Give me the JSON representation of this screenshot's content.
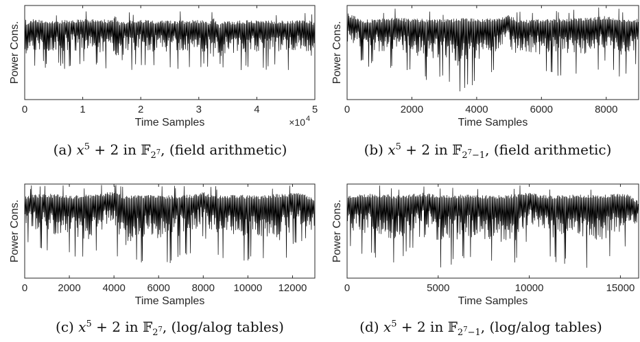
{
  "chart_data": [
    {
      "type": "line",
      "id": "a",
      "ylabel": "Power Cons.",
      "xlabel": "Time Samples",
      "xlim": [
        0,
        50000
      ],
      "x_ticks": [
        0,
        10000,
        20000,
        30000,
        40000,
        50000
      ],
      "x_tick_labels": [
        "0",
        "1",
        "2",
        "3",
        "4",
        "5"
      ],
      "x_multiplier_label": "×10",
      "x_multiplier_exp": "4",
      "y_ticks": [],
      "grid": false,
      "series": [
        {
          "x": [
            0,
            300,
            1500,
            5000,
            10000,
            15200,
            15500,
            16000,
            16600,
            17000,
            20000,
            25000,
            30000,
            32000,
            32500,
            33000,
            33600,
            34000,
            40000,
            45000,
            49000,
            49500,
            50000
          ],
          "upper": [
            0.97,
            0.8,
            0.86,
            0.84,
            0.86,
            0.85,
            0.9,
            0.85,
            0.82,
            0.84,
            0.85,
            0.84,
            0.85,
            0.83,
            0.88,
            0.84,
            0.8,
            0.83,
            0.85,
            0.84,
            0.85,
            0.82,
            0.85
          ],
          "lower": [
            0.2,
            0.25,
            0.34,
            0.32,
            0.33,
            0.3,
            0.02,
            0.25,
            0.05,
            0.3,
            0.33,
            0.32,
            0.33,
            0.31,
            0.12,
            0.3,
            0.1,
            0.3,
            0.32,
            0.31,
            0.33,
            0.1,
            0.28
          ]
        }
      ],
      "caption_letter": "(a)",
      "caption_poly": "x",
      "caption_poly_exp": "5",
      "caption_poly_rest": "+ 2 in",
      "caption_field": "𝔽",
      "caption_field_sub": "2",
      "caption_field_sub_exp": "7",
      "caption_field_sub_rest": "",
      "caption_method": ", (field arithmetic)"
    },
    {
      "type": "line",
      "id": "b",
      "ylabel": "Power Cons.",
      "xlabel": "Time Samples",
      "xlim": [
        0,
        9000
      ],
      "x_ticks": [
        0,
        2000,
        4000,
        6000,
        8000
      ],
      "x_tick_labels": [
        "0",
        "2000",
        "4000",
        "6000",
        "8000"
      ],
      "y_ticks": [],
      "grid": false,
      "series": [
        {
          "x": [
            0,
            500,
            1500,
            2500,
            3000,
            3500,
            4500,
            5000,
            5200,
            5600,
            6500,
            7500,
            8000,
            8500,
            9000
          ],
          "upper": [
            0.92,
            0.85,
            0.87,
            0.86,
            0.85,
            0.87,
            0.86,
            0.9,
            0.86,
            0.85,
            0.86,
            0.87,
            0.89,
            0.86,
            0.86
          ],
          "lower": [
            0.45,
            0.35,
            0.3,
            0.2,
            0.25,
            0.05,
            0.3,
            0.4,
            0.22,
            0.3,
            0.25,
            0.28,
            0.35,
            0.2,
            0.4
          ]
        }
      ],
      "caption_letter": "(b)",
      "caption_poly": "x",
      "caption_poly_exp": "5",
      "caption_poly_rest": "+ 2 in",
      "caption_field": "𝔽",
      "caption_field_sub": "2",
      "caption_field_sub_exp": "7",
      "caption_field_sub_rest": "−1",
      "caption_method": ", (field arithmetic)"
    },
    {
      "type": "line",
      "id": "c",
      "ylabel": "Power Cons.",
      "xlabel": "Time Samples",
      "xlim": [
        0,
        13000
      ],
      "x_ticks": [
        0,
        2000,
        4000,
        6000,
        8000,
        10000,
        12000
      ],
      "x_tick_labels": [
        "0",
        "2000",
        "4000",
        "6000",
        "8000",
        "10000",
        "12000"
      ],
      "y_ticks": [],
      "grid": false,
      "series": [
        {
          "x": [
            0,
            1000,
            2000,
            3000,
            3800,
            4500,
            5500,
            6500,
            7500,
            8000,
            8500,
            9500,
            10500,
            11500,
            12300,
            13000
          ],
          "upper": [
            0.88,
            0.9,
            0.88,
            0.89,
            0.92,
            0.88,
            0.89,
            0.88,
            0.89,
            0.92,
            0.88,
            0.89,
            0.88,
            0.9,
            0.91,
            0.85
          ],
          "lower": [
            0.35,
            0.25,
            0.2,
            0.15,
            0.4,
            0.05,
            0.2,
            0.15,
            0.25,
            0.42,
            0.18,
            0.15,
            0.22,
            0.12,
            0.4,
            0.3
          ]
        }
      ],
      "caption_letter": "(c)",
      "caption_poly": "x",
      "caption_poly_exp": "5",
      "caption_poly_rest": "+ 2 in",
      "caption_field": "𝔽",
      "caption_field_sub": "2",
      "caption_field_sub_exp": "7",
      "caption_field_sub_rest": "",
      "caption_method": ", (log/alog tables)"
    },
    {
      "type": "line",
      "id": "d",
      "ylabel": "Power Cons.",
      "xlabel": "Time Samples",
      "xlim": [
        0,
        16000
      ],
      "x_ticks": [
        0,
        5000,
        10000,
        15000
      ],
      "x_tick_labels": [
        "0",
        "5000",
        "10000",
        "15000"
      ],
      "y_ticks": [],
      "grid": false,
      "series": [
        {
          "x": [
            0,
            1500,
            3000,
            4200,
            5000,
            6500,
            8000,
            9000,
            10000,
            11000,
            12500,
            14000,
            14500,
            15500,
            16000
          ],
          "upper": [
            0.88,
            0.9,
            0.88,
            0.91,
            0.88,
            0.89,
            0.88,
            0.89,
            0.91,
            0.88,
            0.89,
            0.88,
            0.9,
            0.89,
            0.82
          ],
          "lower": [
            0.3,
            0.2,
            0.15,
            0.42,
            0.1,
            0.18,
            0.15,
            0.05,
            0.4,
            0.18,
            0.12,
            0.05,
            0.2,
            0.35,
            0.4
          ]
        }
      ],
      "caption_letter": "(d)",
      "caption_poly": "x",
      "caption_poly_exp": "5",
      "caption_poly_rest": "+ 2 in",
      "caption_field": "𝔽",
      "caption_field_sub": "2",
      "caption_field_sub_exp": "7",
      "caption_field_sub_rest": "−1",
      "caption_method": ", (log/alog tables)"
    }
  ]
}
